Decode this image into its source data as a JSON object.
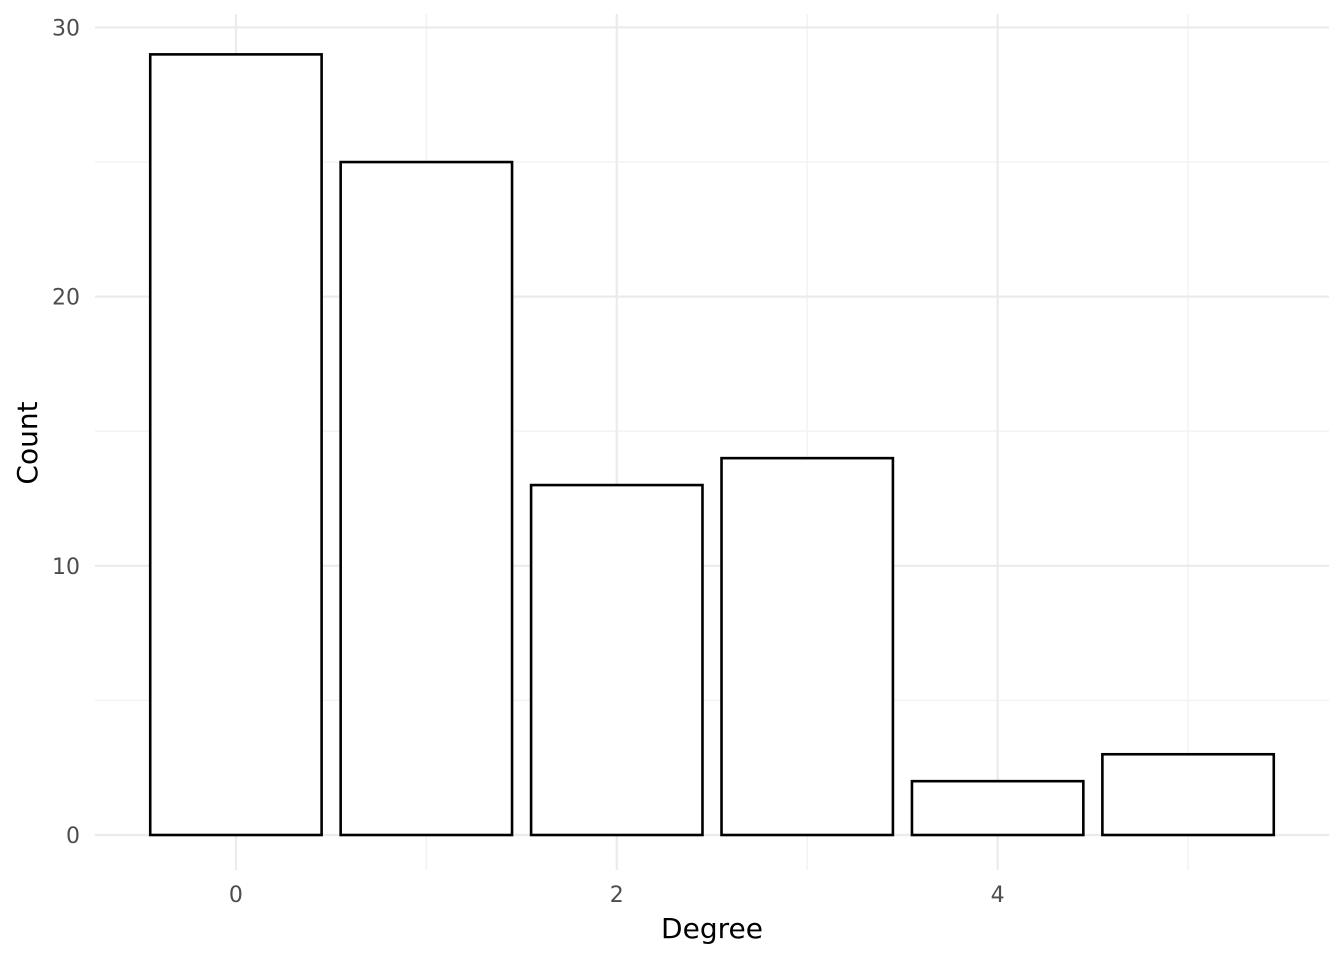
{
  "chart_data": {
    "type": "bar",
    "categories": [
      0,
      1,
      2,
      3,
      4,
      5
    ],
    "values": [
      29,
      25,
      13,
      14,
      2,
      3
    ],
    "xlabel": "Degree",
    "ylabel": "Count",
    "xlim": [
      -0.74,
      5.74
    ],
    "ylim": [
      -1.3,
      30.5
    ],
    "x_ticks": [
      0,
      2,
      4
    ],
    "x_tick_labels": [
      "0",
      "2",
      "4"
    ],
    "y_ticks": [
      0,
      10,
      20,
      30
    ],
    "y_tick_labels": [
      "0",
      "10",
      "20",
      "30"
    ],
    "bar_width": 0.9,
    "grid": true,
    "colors": {
      "bar_fill": "#ffffff",
      "bar_stroke": "#000000",
      "grid": "#ebebeb",
      "background": "#ffffff"
    }
  }
}
